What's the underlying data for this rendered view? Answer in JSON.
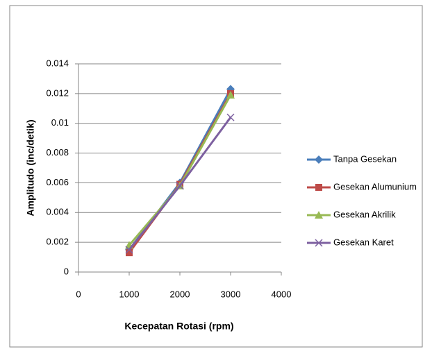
{
  "chart_data": {
    "type": "line",
    "x_label": "Kecepatan Rotasi (rpm)",
    "y_label": "Amplitudo (inc/detik)",
    "x": [
      1000,
      2000,
      3000
    ],
    "series": [
      {
        "name": "Tanpa Gesekan",
        "color": "#4a7ebb",
        "marker": "diamond",
        "values": [
          0.0015,
          0.006,
          0.0123
        ]
      },
      {
        "name": "Gesekan Alumunium",
        "color": "#be4b48",
        "marker": "square",
        "values": [
          0.0013,
          0.0059,
          0.012
        ]
      },
      {
        "name": "Gesekan Akrilik",
        "color": "#98b954",
        "marker": "triangle",
        "values": [
          0.0018,
          0.0058,
          0.0119
        ]
      },
      {
        "name": "Gesekan Karet",
        "color": "#7d60a0",
        "marker": "x",
        "values": [
          0.0015,
          0.0058,
          0.0104
        ]
      }
    ],
    "xlim": [
      0,
      4000
    ],
    "xticks": [
      0,
      1000,
      2000,
      3000,
      4000
    ],
    "ylim": [
      0,
      0.014
    ],
    "yticks": [
      0,
      0.002,
      0.004,
      0.006,
      0.008,
      0.01,
      0.012,
      0.014
    ],
    "grid": true,
    "legend": "right"
  }
}
